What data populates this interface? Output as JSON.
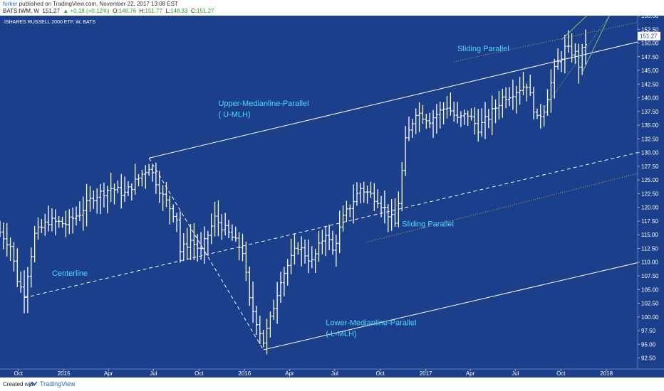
{
  "header": {
    "author": "forker",
    "published": "published on TradingView.com, November 22, 2017 13:08 EST",
    "symbol": "BATS:IWM, W",
    "last": "151.27",
    "change": "+0.18 (+0.12%)",
    "o_label": "O:",
    "o_val": "148.76",
    "h_label": "H:",
    "h_val": "151.77",
    "l_label": "L:",
    "l_val": "148.33",
    "c_label": "C:",
    "c_val": "151.27"
  },
  "footer": {
    "created": "Created with",
    "brand": "TradingView"
  },
  "colors": {
    "background": "#1b3f8a",
    "bars": "#ffffff",
    "text": "#ffffff",
    "annotation": "#4fd8ff",
    "sliding": "#c9a24a",
    "steep": "#8fcf6a"
  },
  "chart_data": {
    "type": "ohlc",
    "title": "ISHARES RUSSELL 2000 ETF, W, BATS",
    "price_label": "151.27",
    "ylim": [
      90.5,
      155
    ],
    "xlim": [
      "2014-08-25",
      "2018-03-05"
    ],
    "yticks": [
      92.5,
      95,
      97.5,
      100,
      102.5,
      105,
      107.5,
      110,
      112.5,
      115,
      117.5,
      120,
      122.5,
      125,
      127.5,
      130,
      132.5,
      135,
      137.5,
      140,
      142.5,
      145,
      147.5,
      150,
      152.5,
      155
    ],
    "ytick_labels": [
      "92.50",
      "95.00",
      "97.50",
      "100.00",
      "102.50",
      "105.00",
      "107.50",
      "110.00",
      "112.50",
      "115.00",
      "117.50",
      "120.00",
      "122.50",
      "125.00",
      "127.50",
      "130.00",
      "132.50",
      "135.00",
      "137.50",
      "140.00",
      "142.50",
      "145.00",
      "147.50",
      "150.00",
      "152.50",
      "155.00"
    ],
    "xticks": [
      {
        "label": "Oct",
        "date": "2014-10-01"
      },
      {
        "label": "2015",
        "date": "2015-01-01"
      },
      {
        "label": "Apr",
        "date": "2015-04-01"
      },
      {
        "label": "Jul",
        "date": "2015-07-01"
      },
      {
        "label": "Oct",
        "date": "2015-10-01"
      },
      {
        "label": "2016",
        "date": "2016-01-01"
      },
      {
        "label": "Apr",
        "date": "2016-04-01"
      },
      {
        "label": "Jul",
        "date": "2016-07-01"
      },
      {
        "label": "Oct",
        "date": "2016-10-01"
      },
      {
        "label": "2017",
        "date": "2017-01-01"
      },
      {
        "label": "Apr",
        "date": "2017-04-01"
      },
      {
        "label": "Jul",
        "date": "2017-07-01"
      },
      {
        "label": "Oct",
        "date": "2017-10-01"
      },
      {
        "label": "2018",
        "date": "2018-01-01"
      }
    ],
    "price_anchors": [
      [
        "2014-08-25",
        115.5
      ],
      [
        "2014-09-15",
        113
      ],
      [
        "2014-10-01",
        106
      ],
      [
        "2014-10-13",
        104.5
      ],
      [
        "2014-11-03",
        115
      ],
      [
        "2014-12-01",
        117.5
      ],
      [
        "2015-01-05",
        117
      ],
      [
        "2015-02-02",
        119
      ],
      [
        "2015-03-02",
        122
      ],
      [
        "2015-04-06",
        123.5
      ],
      [
        "2015-05-04",
        122.5
      ],
      [
        "2015-06-22",
        127.5
      ],
      [
        "2015-07-20",
        122
      ],
      [
        "2015-08-17",
        118
      ],
      [
        "2015-08-24",
        112
      ],
      [
        "2015-09-14",
        114
      ],
      [
        "2015-10-05",
        112
      ],
      [
        "2015-11-02",
        118
      ],
      [
        "2015-12-07",
        114.5
      ],
      [
        "2015-12-28",
        112
      ],
      [
        "2016-01-11",
        103
      ],
      [
        "2016-02-08",
        95.5
      ],
      [
        "2016-02-22",
        99.5
      ],
      [
        "2016-03-14",
        107
      ],
      [
        "2016-04-18",
        113
      ],
      [
        "2016-05-16",
        110
      ],
      [
        "2016-06-13",
        115.5
      ],
      [
        "2016-06-27",
        112
      ],
      [
        "2016-07-18",
        118
      ],
      [
        "2016-08-22",
        123.5
      ],
      [
        "2016-09-26",
        121.5
      ],
      [
        "2016-10-31",
        117
      ],
      [
        "2016-11-07",
        121
      ],
      [
        "2016-11-21",
        132
      ],
      [
        "2016-12-12",
        137.5
      ],
      [
        "2017-01-09",
        136
      ],
      [
        "2017-02-13",
        138.5
      ],
      [
        "2017-03-06",
        136
      ],
      [
        "2017-03-27",
        137
      ],
      [
        "2017-04-17",
        134.5
      ],
      [
        "2017-05-08",
        136.5
      ],
      [
        "2017-06-05",
        140
      ],
      [
        "2017-06-26",
        141
      ],
      [
        "2017-07-24",
        142.5
      ],
      [
        "2017-08-14",
        136
      ],
      [
        "2017-08-28",
        138
      ],
      [
        "2017-09-18",
        145
      ],
      [
        "2017-10-09",
        149
      ],
      [
        "2017-10-30",
        148
      ],
      [
        "2017-11-06",
        146
      ],
      [
        "2017-11-13",
        148.5
      ],
      [
        "2017-11-20",
        150
      ]
    ],
    "lines": {
      "upper_mlh": {
        "from": [
          "2015-06-22",
          129
        ],
        "to": [
          "2018-03-05",
          150.2
        ]
      },
      "centerline": {
        "from": [
          "2014-10-13",
          103.5
        ],
        "to": [
          "2018-03-05",
          130
        ]
      },
      "lower_mlh": {
        "from": [
          "2016-02-08",
          94
        ],
        "to": [
          "2018-03-05",
          109.9
        ]
      },
      "fork_leg": {
        "from": [
          "2015-06-22",
          129
        ],
        "to": [
          "2016-02-08",
          94
        ]
      },
      "sliding_upper": {
        "from": [
          "2017-02-27",
          146.6
        ],
        "to": [
          "2018-03-05",
          153.8
        ]
      },
      "sliding_lower": {
        "from": [
          "2016-09-05",
          113.7
        ],
        "to": [
          "2018-03-05",
          126.2
        ]
      },
      "steep_1": {
        "from": [
          "2017-10-02",
          150.6
        ],
        "to": [
          "2017-12-04",
          156
        ]
      },
      "steep_2": {
        "from": [
          "2017-11-13",
          144.6
        ],
        "to": [
          "2018-01-08",
          155.2
        ]
      },
      "steep_3": {
        "from": [
          "2017-08-28",
          138
        ],
        "to": [
          "2018-01-08",
          155.2
        ]
      }
    },
    "annotations": [
      {
        "text": "Upper-Medianline-Parallel",
        "date": "2015-11-09",
        "price": 138.5
      },
      {
        "text": "( U-MLH)",
        "date": "2015-11-09",
        "price": 136.5
      },
      {
        "text": "Centerline",
        "date": "2014-12-08",
        "price": 107.5
      },
      {
        "text": "Lower-Medianline-Parallel",
        "date": "2016-06-13",
        "price": 98.5
      },
      {
        "text": "( L-MLH)",
        "date": "2016-06-13",
        "price": 96.5
      },
      {
        "text": "Sliding Parallel",
        "date": "2016-11-14",
        "price": 116.5
      },
      {
        "text": "Sliding Parallel",
        "date": "2017-03-06",
        "price": 148.5
      }
    ]
  }
}
